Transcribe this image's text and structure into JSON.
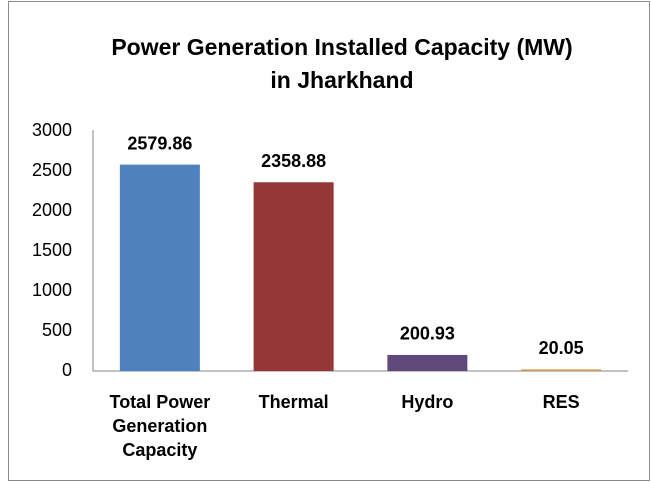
{
  "chart_data": {
    "type": "bar",
    "title": [
      "Power Generation Installed Capacity (MW)",
      "in Jharkhand"
    ],
    "categories": [
      "Total Power Generation Capacity",
      "Thermal",
      "Hydro",
      "RES"
    ],
    "values": [
      2579.86,
      2358.88,
      200.93,
      20.05
    ],
    "colors": [
      "#4f81bd",
      "#953735",
      "#604a7b",
      "#d19a4a"
    ],
    "ylim": [
      0,
      3000
    ],
    "yticks": [
      0,
      500,
      1000,
      1500,
      2000,
      2500,
      3000
    ],
    "grid": false
  }
}
